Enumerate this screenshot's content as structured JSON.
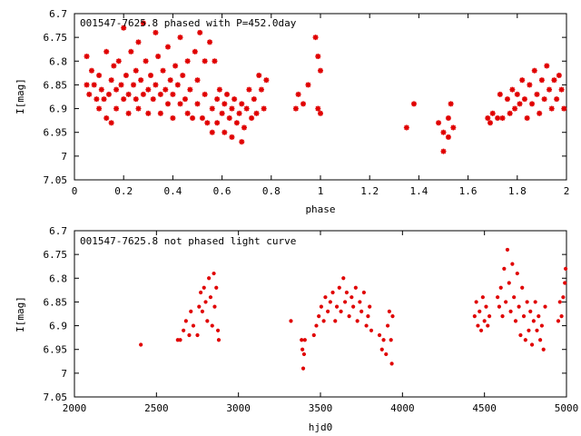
{
  "chart_data": [
    {
      "type": "scatter",
      "title": "001547-7625.8 phased with P=452.0day",
      "xlabel": "phase",
      "ylabel": "I[mag]",
      "xlim": [
        0,
        2
      ],
      "ylim": [
        7.05,
        6.7
      ],
      "y_inverted": true,
      "x_ticks": [
        "0",
        "0.2",
        "0.4",
        "0.6",
        "0.8",
        "1",
        "1.2",
        "1.4",
        "1.6",
        "1.8",
        "2"
      ],
      "y_ticks": [
        "6.7",
        "6.75",
        "6.8",
        "6.85",
        "6.9",
        "6.95",
        "7",
        "7.05"
      ],
      "marker": "asterisk",
      "color": "#e00000",
      "points": [
        [
          0.05,
          6.79
        ],
        [
          0.05,
          6.85
        ],
        [
          0.06,
          6.87
        ],
        [
          0.07,
          6.82
        ],
        [
          0.08,
          6.85
        ],
        [
          0.09,
          6.88
        ],
        [
          0.1,
          6.83
        ],
        [
          0.1,
          6.9
        ],
        [
          0.11,
          6.86
        ],
        [
          0.12,
          6.88
        ],
        [
          0.13,
          6.78
        ],
        [
          0.13,
          6.92
        ],
        [
          0.14,
          6.87
        ],
        [
          0.15,
          6.84
        ],
        [
          0.15,
          6.93
        ],
        [
          0.16,
          6.81
        ],
        [
          0.17,
          6.86
        ],
        [
          0.17,
          6.9
        ],
        [
          0.18,
          6.8
        ],
        [
          0.19,
          6.85
        ],
        [
          0.2,
          6.88
        ],
        [
          0.2,
          6.73
        ],
        [
          0.21,
          6.83
        ],
        [
          0.22,
          6.87
        ],
        [
          0.22,
          6.91
        ],
        [
          0.23,
          6.78
        ],
        [
          0.24,
          6.85
        ],
        [
          0.25,
          6.88
        ],
        [
          0.25,
          6.82
        ],
        [
          0.26,
          6.76
        ],
        [
          0.26,
          6.9
        ],
        [
          0.27,
          6.84
        ],
        [
          0.28,
          6.87
        ],
        [
          0.28,
          6.72
        ],
        [
          0.29,
          6.8
        ],
        [
          0.3,
          6.86
        ],
        [
          0.3,
          6.91
        ],
        [
          0.31,
          6.83
        ],
        [
          0.32,
          6.88
        ],
        [
          0.33,
          6.74
        ],
        [
          0.33,
          6.85
        ],
        [
          0.34,
          6.79
        ],
        [
          0.35,
          6.87
        ],
        [
          0.35,
          6.91
        ],
        [
          0.36,
          6.82
        ],
        [
          0.37,
          6.86
        ],
        [
          0.38,
          6.89
        ],
        [
          0.38,
          6.77
        ],
        [
          0.39,
          6.84
        ],
        [
          0.4,
          6.87
        ],
        [
          0.4,
          6.92
        ],
        [
          0.41,
          6.81
        ],
        [
          0.42,
          6.85
        ],
        [
          0.43,
          6.89
        ],
        [
          0.43,
          6.75
        ],
        [
          0.44,
          6.83
        ],
        [
          0.45,
          6.88
        ],
        [
          0.46,
          6.91
        ],
        [
          0.46,
          6.8
        ],
        [
          0.47,
          6.86
        ],
        [
          0.48,
          6.92
        ],
        [
          0.49,
          6.78
        ],
        [
          0.5,
          6.84
        ],
        [
          0.5,
          6.89
        ],
        [
          0.51,
          6.74
        ],
        [
          0.52,
          6.92
        ],
        [
          0.53,
          6.8
        ],
        [
          0.53,
          6.87
        ],
        [
          0.54,
          6.93
        ],
        [
          0.55,
          6.76
        ],
        [
          0.56,
          6.9
        ],
        [
          0.56,
          6.95
        ],
        [
          0.57,
          6.8
        ],
        [
          0.58,
          6.88
        ],
        [
          0.58,
          6.93
        ],
        [
          0.59,
          6.86
        ],
        [
          0.6,
          6.91
        ],
        [
          0.61,
          6.89
        ],
        [
          0.61,
          6.95
        ],
        [
          0.62,
          6.87
        ],
        [
          0.63,
          6.92
        ],
        [
          0.64,
          6.9
        ],
        [
          0.64,
          6.96
        ],
        [
          0.65,
          6.88
        ],
        [
          0.66,
          6.93
        ],
        [
          0.67,
          6.91
        ],
        [
          0.68,
          6.97
        ],
        [
          0.68,
          6.89
        ],
        [
          0.69,
          6.94
        ],
        [
          0.7,
          6.9
        ],
        [
          0.71,
          6.86
        ],
        [
          0.72,
          6.92
        ],
        [
          0.73,
          6.88
        ],
        [
          0.74,
          6.91
        ],
        [
          0.75,
          6.83
        ],
        [
          0.76,
          6.86
        ],
        [
          0.77,
          6.9
        ],
        [
          0.78,
          6.84
        ],
        [
          0.9,
          6.9
        ],
        [
          0.91,
          6.87
        ],
        [
          0.93,
          6.89
        ],
        [
          0.95,
          6.85
        ],
        [
          0.98,
          6.75
        ],
        [
          0.99,
          6.79
        ],
        [
          1.0,
          6.82
        ],
        [
          0.99,
          6.9
        ],
        [
          1.0,
          6.91
        ],
        [
          1.35,
          6.94
        ],
        [
          1.38,
          6.89
        ],
        [
          1.48,
          6.93
        ],
        [
          1.5,
          6.95
        ],
        [
          1.5,
          6.99
        ],
        [
          1.52,
          6.92
        ],
        [
          1.52,
          6.96
        ],
        [
          1.53,
          6.89
        ],
        [
          1.54,
          6.94
        ],
        [
          1.68,
          6.92
        ],
        [
          1.69,
          6.93
        ],
        [
          1.7,
          6.91
        ],
        [
          1.72,
          6.92
        ],
        [
          1.73,
          6.87
        ],
        [
          1.74,
          6.92
        ],
        [
          1.76,
          6.88
        ],
        [
          1.77,
          6.91
        ],
        [
          1.78,
          6.86
        ],
        [
          1.79,
          6.9
        ],
        [
          1.8,
          6.87
        ],
        [
          1.81,
          6.89
        ],
        [
          1.82,
          6.84
        ],
        [
          1.83,
          6.88
        ],
        [
          1.84,
          6.92
        ],
        [
          1.85,
          6.85
        ],
        [
          1.86,
          6.89
        ],
        [
          1.87,
          6.82
        ],
        [
          1.88,
          6.87
        ],
        [
          1.89,
          6.91
        ],
        [
          1.9,
          6.84
        ],
        [
          1.91,
          6.88
        ],
        [
          1.92,
          6.81
        ],
        [
          1.93,
          6.86
        ],
        [
          1.94,
          6.9
        ],
        [
          1.95,
          6.84
        ],
        [
          1.96,
          6.88
        ],
        [
          1.97,
          6.83
        ],
        [
          1.98,
          6.86
        ],
        [
          1.99,
          6.9
        ]
      ]
    },
    {
      "type": "scatter",
      "title": "001547-7625.8 not phased light curve",
      "xlabel": "hjd0",
      "ylabel": "I[mag]",
      "xlim": [
        2000,
        5000
      ],
      "ylim": [
        7.05,
        6.7
      ],
      "y_inverted": true,
      "x_ticks": [
        "2000",
        "2500",
        "3000",
        "3500",
        "4000",
        "4500",
        "5000"
      ],
      "y_ticks": [
        "6.7",
        "6.75",
        "6.8",
        "6.85",
        "6.9",
        "6.95",
        "7",
        "7.05"
      ],
      "marker": "dot",
      "color": "#e00000",
      "points": [
        [
          2405,
          6.94
        ],
        [
          2630,
          6.93
        ],
        [
          2645,
          6.93
        ],
        [
          2665,
          6.91
        ],
        [
          2680,
          6.89
        ],
        [
          2700,
          6.92
        ],
        [
          2710,
          6.87
        ],
        [
          2725,
          6.9
        ],
        [
          2750,
          6.92
        ],
        [
          2760,
          6.86
        ],
        [
          2770,
          6.83
        ],
        [
          2780,
          6.87
        ],
        [
          2790,
          6.82
        ],
        [
          2800,
          6.85
        ],
        [
          2810,
          6.89
        ],
        [
          2820,
          6.8
        ],
        [
          2830,
          6.84
        ],
        [
          2840,
          6.9
        ],
        [
          2850,
          6.79
        ],
        [
          2855,
          6.86
        ],
        [
          2865,
          6.82
        ],
        [
          2875,
          6.91
        ],
        [
          2880,
          6.93
        ],
        [
          3320,
          6.89
        ],
        [
          3385,
          6.93
        ],
        [
          3390,
          6.95
        ],
        [
          3395,
          6.99
        ],
        [
          3400,
          6.96
        ],
        [
          3405,
          6.93
        ],
        [
          3460,
          6.92
        ],
        [
          3475,
          6.9
        ],
        [
          3490,
          6.88
        ],
        [
          3505,
          6.86
        ],
        [
          3520,
          6.89
        ],
        [
          3530,
          6.84
        ],
        [
          3545,
          6.87
        ],
        [
          3560,
          6.85
        ],
        [
          3575,
          6.83
        ],
        [
          3590,
          6.89
        ],
        [
          3600,
          6.86
        ],
        [
          3615,
          6.82
        ],
        [
          3625,
          6.87
        ],
        [
          3640,
          6.8
        ],
        [
          3650,
          6.85
        ],
        [
          3660,
          6.83
        ],
        [
          3675,
          6.88
        ],
        [
          3690,
          6.84
        ],
        [
          3700,
          6.86
        ],
        [
          3715,
          6.82
        ],
        [
          3725,
          6.89
        ],
        [
          3740,
          6.85
        ],
        [
          3750,
          6.87
        ],
        [
          3765,
          6.83
        ],
        [
          3780,
          6.9
        ],
        [
          3790,
          6.88
        ],
        [
          3800,
          6.86
        ],
        [
          3810,
          6.91
        ],
        [
          3860,
          6.92
        ],
        [
          3875,
          6.95
        ],
        [
          3885,
          6.93
        ],
        [
          3900,
          6.96
        ],
        [
          3910,
          6.9
        ],
        [
          3920,
          6.87
        ],
        [
          3930,
          6.93
        ],
        [
          3935,
          6.98
        ],
        [
          3940,
          6.88
        ],
        [
          4440,
          6.88
        ],
        [
          4450,
          6.85
        ],
        [
          4460,
          6.9
        ],
        [
          4470,
          6.87
        ],
        [
          4480,
          6.91
        ],
        [
          4490,
          6.84
        ],
        [
          4500,
          6.89
        ],
        [
          4510,
          6.86
        ],
        [
          4520,
          6.9
        ],
        [
          4530,
          6.88
        ],
        [
          4580,
          6.84
        ],
        [
          4590,
          6.86
        ],
        [
          4600,
          6.82
        ],
        [
          4610,
          6.88
        ],
        [
          4620,
          6.78
        ],
        [
          4630,
          6.85
        ],
        [
          4640,
          6.74
        ],
        [
          4650,
          6.81
        ],
        [
          4660,
          6.87
        ],
        [
          4670,
          6.77
        ],
        [
          4680,
          6.84
        ],
        [
          4690,
          6.89
        ],
        [
          4700,
          6.79
        ],
        [
          4710,
          6.86
        ],
        [
          4720,
          6.92
        ],
        [
          4730,
          6.82
        ],
        [
          4740,
          6.88
        ],
        [
          4750,
          6.93
        ],
        [
          4760,
          6.85
        ],
        [
          4770,
          6.91
        ],
        [
          4780,
          6.87
        ],
        [
          4790,
          6.94
        ],
        [
          4800,
          6.89
        ],
        [
          4810,
          6.85
        ],
        [
          4820,
          6.91
        ],
        [
          4830,
          6.88
        ],
        [
          4840,
          6.93
        ],
        [
          4850,
          6.9
        ],
        [
          4860,
          6.95
        ],
        [
          4870,
          6.86
        ],
        [
          4950,
          6.89
        ],
        [
          4960,
          6.85
        ],
        [
          4970,
          6.88
        ],
        [
          4980,
          6.84
        ],
        [
          4990,
          6.81
        ],
        [
          4995,
          6.78
        ]
      ]
    }
  ]
}
